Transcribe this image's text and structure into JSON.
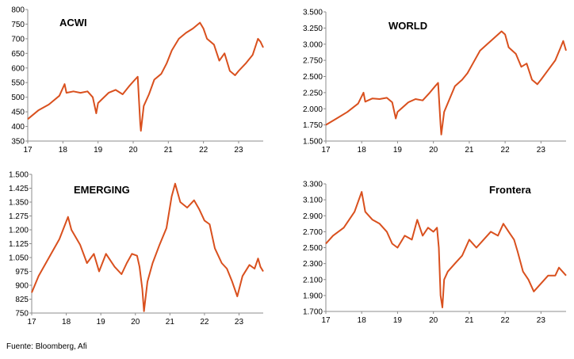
{
  "source": "Fuente: Bloomberg, Afi",
  "chart_data": [
    {
      "type": "line",
      "title": "ACWI",
      "x_ticks": [
        "17",
        "18",
        "19",
        "20",
        "21",
        "22",
        "23"
      ],
      "x_range": [
        2017.0,
        2023.7
      ],
      "y_ticks": [
        "350",
        "400",
        "450",
        "500",
        "550",
        "600",
        "650",
        "700",
        "750",
        "800"
      ],
      "ylim": [
        350,
        800
      ],
      "series": [
        {
          "color": "#D9501E",
          "x": [
            2017.0,
            2017.3,
            2017.6,
            2017.9,
            2018.05,
            2018.1,
            2018.3,
            2018.5,
            2018.7,
            2018.85,
            2018.95,
            2019.0,
            2019.3,
            2019.5,
            2019.7,
            2019.9,
            2020.05,
            2020.13,
            2020.2,
            2020.22,
            2020.3,
            2020.45,
            2020.6,
            2020.8,
            2020.95,
            2021.1,
            2021.3,
            2021.5,
            2021.7,
            2021.9,
            2022.0,
            2022.1,
            2022.3,
            2022.45,
            2022.6,
            2022.75,
            2022.9,
            2023.0,
            2023.2,
            2023.4,
            2023.55,
            2023.62,
            2023.7
          ],
          "y": [
            425,
            455,
            475,
            505,
            545,
            515,
            520,
            515,
            520,
            500,
            445,
            480,
            515,
            525,
            510,
            540,
            560,
            570,
            410,
            385,
            470,
            510,
            560,
            580,
            615,
            660,
            700,
            720,
            735,
            755,
            735,
            700,
            680,
            625,
            650,
            590,
            575,
            590,
            615,
            645,
            700,
            690,
            670
          ]
        }
      ]
    },
    {
      "type": "line",
      "title": "WORLD",
      "x_ticks": [
        "17",
        "18",
        "19",
        "20",
        "21",
        "22",
        "23"
      ],
      "x_range": [
        2017.0,
        2023.7
      ],
      "y_ticks": [
        "1.500",
        "1.750",
        "2.000",
        "2.250",
        "2.500",
        "2.750",
        "3.000",
        "3.250",
        "3.500"
      ],
      "ylim": [
        1500,
        3500
      ],
      "series": [
        {
          "color": "#D9501E",
          "x": [
            2017.0,
            2017.3,
            2017.6,
            2017.9,
            2018.05,
            2018.1,
            2018.3,
            2018.5,
            2018.7,
            2018.85,
            2018.95,
            2019.0,
            2019.3,
            2019.5,
            2019.7,
            2019.9,
            2020.05,
            2020.13,
            2020.2,
            2020.22,
            2020.3,
            2020.45,
            2020.6,
            2020.8,
            2020.95,
            2021.1,
            2021.3,
            2021.5,
            2021.7,
            2021.9,
            2022.0,
            2022.1,
            2022.3,
            2022.45,
            2022.6,
            2022.75,
            2022.9,
            2023.0,
            2023.2,
            2023.4,
            2023.55,
            2023.62,
            2023.7
          ],
          "y": [
            1750,
            1850,
            1950,
            2080,
            2250,
            2110,
            2160,
            2150,
            2170,
            2100,
            1850,
            1950,
            2100,
            2150,
            2130,
            2250,
            2350,
            2400,
            1750,
            1600,
            1950,
            2150,
            2350,
            2450,
            2550,
            2700,
            2900,
            3000,
            3100,
            3200,
            3150,
            2950,
            2850,
            2650,
            2700,
            2450,
            2380,
            2450,
            2600,
            2750,
            2950,
            3050,
            2900
          ]
        }
      ]
    },
    {
      "type": "line",
      "title": "EMERGING",
      "x_ticks": [
        "17",
        "18",
        "19",
        "20",
        "21",
        "22",
        "23"
      ],
      "x_range": [
        2017.0,
        2023.7
      ],
      "y_ticks": [
        "750",
        "825",
        "900",
        "975",
        "1.050",
        "1.125",
        "1.200",
        "1.275",
        "1.350",
        "1.425",
        "1.500"
      ],
      "ylim": [
        750,
        1500
      ],
      "series": [
        {
          "color": "#D9501E",
          "x": [
            2017.0,
            2017.2,
            2017.5,
            2017.8,
            2018.05,
            2018.15,
            2018.4,
            2018.6,
            2018.8,
            2018.95,
            2019.15,
            2019.4,
            2019.6,
            2019.75,
            2019.9,
            2020.05,
            2020.12,
            2020.2,
            2020.25,
            2020.35,
            2020.5,
            2020.7,
            2020.9,
            2021.05,
            2021.15,
            2021.3,
            2021.5,
            2021.7,
            2021.85,
            2022.0,
            2022.15,
            2022.3,
            2022.5,
            2022.65,
            2022.8,
            2022.95,
            2023.1,
            2023.3,
            2023.45,
            2023.55,
            2023.62,
            2023.7
          ],
          "y": [
            860,
            950,
            1050,
            1150,
            1270,
            1200,
            1120,
            1020,
            1070,
            975,
            1070,
            1000,
            960,
            1020,
            1070,
            1060,
            1000,
            880,
            760,
            920,
            1020,
            1120,
            1210,
            1380,
            1450,
            1350,
            1320,
            1360,
            1310,
            1250,
            1230,
            1100,
            1020,
            990,
            920,
            840,
            950,
            1010,
            990,
            1045,
            1000,
            975
          ]
        }
      ]
    },
    {
      "type": "line",
      "title": "Frontera",
      "x_ticks": [
        "17",
        "18",
        "19",
        "20",
        "21",
        "22",
        "23"
      ],
      "x_range": [
        2017.0,
        2023.7
      ],
      "y_ticks": [
        "1.700",
        "1.900",
        "2.100",
        "2.300",
        "2.500",
        "2.700",
        "2.900",
        "3.100",
        "3.300"
      ],
      "ylim": [
        1700,
        3300
      ],
      "series": [
        {
          "color": "#D9501E",
          "x": [
            2017.0,
            2017.2,
            2017.5,
            2017.8,
            2018.0,
            2018.1,
            2018.3,
            2018.5,
            2018.7,
            2018.85,
            2019.0,
            2019.2,
            2019.4,
            2019.55,
            2019.7,
            2019.85,
            2020.0,
            2020.1,
            2020.15,
            2020.2,
            2020.25,
            2020.3,
            2020.4,
            2020.6,
            2020.8,
            2021.0,
            2021.2,
            2021.4,
            2021.6,
            2021.8,
            2021.95,
            2022.1,
            2022.25,
            2022.35,
            2022.5,
            2022.65,
            2022.8,
            2023.0,
            2023.2,
            2023.4,
            2023.5,
            2023.6,
            2023.7
          ],
          "y": [
            2550,
            2650,
            2750,
            2950,
            3200,
            2950,
            2850,
            2800,
            2700,
            2550,
            2500,
            2650,
            2600,
            2850,
            2650,
            2750,
            2700,
            2750,
            2500,
            1900,
            1750,
            2100,
            2200,
            2300,
            2400,
            2600,
            2500,
            2600,
            2700,
            2650,
            2800,
            2700,
            2600,
            2450,
            2200,
            2100,
            1950,
            2050,
            2150,
            2150,
            2250,
            2200,
            2150
          ]
        }
      ]
    }
  ]
}
